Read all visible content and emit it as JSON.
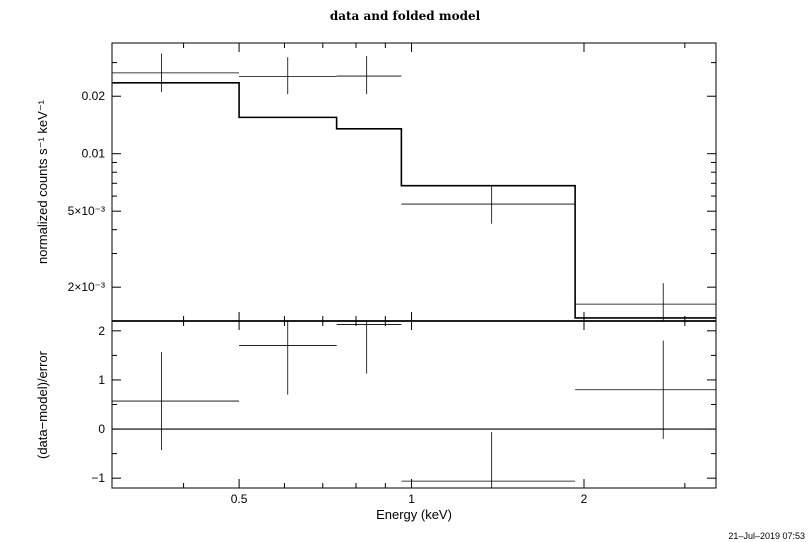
{
  "chart_data": [
    {
      "type": "line",
      "panel": "top",
      "title": "data and folded model",
      "xlabel": "",
      "ylabel": "normalized counts s⁻¹ keV⁻¹",
      "xscale": "log",
      "yscale": "log",
      "xlim": [
        0.3,
        3.4
      ],
      "ylim": [
        0.00133,
        0.038
      ],
      "yticks": [
        {
          "value": 0.02,
          "label": "0.02"
        },
        {
          "value": 0.01,
          "label": "0.01"
        },
        {
          "value": 0.005,
          "label": "5×10⁻³"
        },
        {
          "value": 0.002,
          "label": "2×10⁻³"
        }
      ],
      "data": [
        {
          "xlo": 0.3,
          "xhi": 0.5,
          "xc": 0.366,
          "y": 0.0265,
          "ylo": 0.021,
          "yhi": 0.0335
        },
        {
          "xlo": 0.5,
          "xhi": 0.74,
          "xc": 0.608,
          "y": 0.0254,
          "ylo": 0.0205,
          "yhi": 0.032
        },
        {
          "xlo": 0.74,
          "xhi": 0.96,
          "xc": 0.835,
          "y": 0.0255,
          "ylo": 0.0205,
          "yhi": 0.0325
        },
        {
          "xlo": 0.96,
          "xhi": 1.93,
          "xc": 1.38,
          "y": 0.00545,
          "ylo": 0.0043,
          "yhi": 0.0068
        },
        {
          "xlo": 1.93,
          "xhi": 3.4,
          "xc": 2.75,
          "y": 0.00163,
          "ylo": 0.00133,
          "yhi": 0.0021
        }
      ],
      "model": [
        {
          "xlo": 0.3,
          "xhi": 0.5,
          "y": 0.0235
        },
        {
          "xlo": 0.5,
          "xhi": 0.74,
          "y": 0.0155
        },
        {
          "xlo": 0.74,
          "xhi": 0.96,
          "y": 0.0135
        },
        {
          "xlo": 0.96,
          "xhi": 1.93,
          "y": 0.0068
        },
        {
          "xlo": 1.93,
          "xhi": 3.4,
          "y": 0.00138
        }
      ]
    },
    {
      "type": "scatter",
      "panel": "bottom",
      "xlabel": "Energy (keV)",
      "ylabel": "(data−model)/error",
      "xscale": "log",
      "xlim": [
        0.3,
        3.4
      ],
      "ylim": [
        -1.2,
        2.2
      ],
      "xticks": [
        {
          "value": 0.5,
          "label": "0.5"
        },
        {
          "value": 1,
          "label": "1"
        },
        {
          "value": 2,
          "label": "2"
        }
      ],
      "yticks": [
        {
          "value": 2,
          "label": "2"
        },
        {
          "value": 1,
          "label": "1"
        },
        {
          "value": 0,
          "label": "0"
        },
        {
          "value": -1,
          "label": "−1"
        }
      ],
      "reference_line": 0,
      "data": [
        {
          "xlo": 0.3,
          "xhi": 0.5,
          "xc": 0.366,
          "y": 0.57,
          "ylo": -0.43,
          "yhi": 1.57
        },
        {
          "xlo": 0.5,
          "xhi": 0.74,
          "xc": 0.608,
          "y": 1.7,
          "ylo": 0.7,
          "yhi": 2.2
        },
        {
          "xlo": 0.74,
          "xhi": 0.96,
          "xc": 0.835,
          "y": 2.13,
          "ylo": 1.13,
          "yhi": 2.2
        },
        {
          "xlo": 0.96,
          "xhi": 1.93,
          "xc": 1.38,
          "y": -1.06,
          "ylo": -1.2,
          "yhi": -0.06
        },
        {
          "xlo": 1.93,
          "xhi": 3.4,
          "xc": 2.75,
          "y": 0.8,
          "ylo": -0.2,
          "yhi": 1.8
        }
      ]
    }
  ],
  "timestamp": "21–Jul–2019 07:53"
}
